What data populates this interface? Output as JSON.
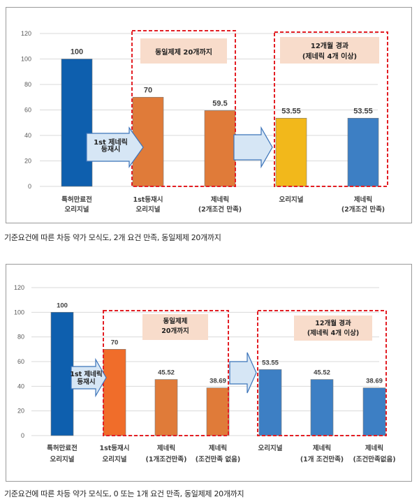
{
  "chart_data": [
    {
      "type": "bar",
      "title": "",
      "xlabel": "",
      "ylabel": "",
      "ylim": [
        0,
        120
      ],
      "yticks": [
        "0",
        "20",
        "40",
        "60",
        "80",
        "100",
        "120"
      ],
      "grid": true,
      "categories": [
        [
          "특허만료전",
          "오리지널"
        ],
        [
          "1st등재시",
          "오리지널"
        ],
        [
          "제네릭",
          "(2개조건 만족)"
        ],
        [
          "오리지널"
        ],
        [
          "제네릭",
          "(2개조건 만족)"
        ]
      ],
      "values": [
        100,
        70,
        59.5,
        53.55,
        53.55
      ],
      "value_labels": [
        "100",
        "70",
        "59.5",
        "53.55",
        "53.55"
      ],
      "bar_colors": [
        "#0e5fae",
        "#e07b39",
        "#e07b39",
        "#f2b81b",
        "#3d7fc4"
      ],
      "arrows": [
        {
          "text": [
            "1st 제네릭",
            "등재시"
          ]
        },
        {
          "text": []
        }
      ],
      "annotations": [
        {
          "text": [
            "동일제제 20개까지"
          ],
          "group": "bars 2-3"
        },
        {
          "text": [
            "12개월 경과",
            "(제네릭 4개 이상)"
          ],
          "group": "bars 4-5"
        }
      ],
      "caption": "기준요건에 따른 차등 약가 모식도, 2개 요건 만족, 동일제제 20개까지"
    },
    {
      "type": "bar",
      "title": "",
      "xlabel": "",
      "ylabel": "",
      "ylim": [
        0,
        120
      ],
      "yticks": [
        "0",
        "20",
        "40",
        "60",
        "80",
        "100",
        "120"
      ],
      "grid": true,
      "categories": [
        [
          "특허만료전",
          "오리지널"
        ],
        [
          "1st등재시",
          "오리지널"
        ],
        [
          "제네릭",
          "(1개조건만족)"
        ],
        [
          "제네릭",
          "(조건만족 없음)"
        ],
        [
          "오리지널"
        ],
        [
          "제네릭",
          "(1개 조건만족)"
        ],
        [
          "제네릭",
          "(조건만족없음)"
        ]
      ],
      "values": [
        100,
        70,
        45.52,
        38.69,
        53.55,
        45.52,
        38.69
      ],
      "value_labels": [
        "100",
        "70",
        "45.52",
        "38.69",
        "53.55",
        "45.52",
        "38.69"
      ],
      "bar_colors": [
        "#0e5fae",
        "#f06d2a",
        "#e07b39",
        "#e07b39",
        "#3d7fc4",
        "#3d7fc4",
        "#3d7fc4"
      ],
      "arrows": [
        {
          "text": [
            "1st 제네릭",
            "등재시"
          ]
        },
        {
          "text": []
        }
      ],
      "annotations": [
        {
          "text": [
            "동일제제",
            "20개까지"
          ],
          "group": "bars 2-4"
        },
        {
          "text": [
            "12개월 경과",
            "(제네릭 4개 이상)"
          ],
          "group": "bars 5-7"
        }
      ],
      "caption": "기준요건에 따른 차등 약가 모식도, 0 또는 1개 요건 만족, 동일제제 20개까지"
    }
  ],
  "colors": {
    "grid": "#d9d9d9",
    "dashed_box": "#e31e24",
    "annotation_fill": "#f8dccb",
    "arrow_fill": "#d6e6f5",
    "arrow_stroke": "#3b73b9"
  }
}
